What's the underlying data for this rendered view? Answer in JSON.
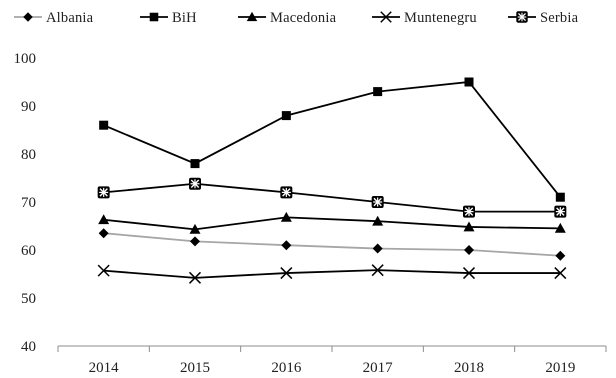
{
  "chart_data": {
    "type": "line",
    "title": "",
    "xlabel": "",
    "ylabel": "",
    "categories": [
      "2014",
      "2015",
      "2016",
      "2017",
      "2018",
      "2019"
    ],
    "ylim": [
      40,
      100
    ],
    "yticks": [
      "40",
      "50",
      "60",
      "70",
      "80",
      "90",
      "100"
    ],
    "grid": false,
    "legend_position": "top",
    "series": [
      {
        "name": "Albania",
        "marker": "diamond",
        "color": "#000000",
        "line_color": "#a6a6a6",
        "values": [
          63.5,
          61.8,
          61.0,
          60.3,
          60.0,
          58.8
        ]
      },
      {
        "name": "BiH",
        "marker": "square",
        "color": "#000000",
        "line_color": "#000000",
        "values": [
          86,
          78,
          88,
          93,
          95,
          71
        ]
      },
      {
        "name": "Macedonia",
        "marker": "triangle",
        "color": "#000000",
        "line_color": "#000000",
        "values": [
          66.3,
          64.3,
          66.8,
          66.0,
          64.8,
          64.5
        ]
      },
      {
        "name": "Muntenegru",
        "marker": "x",
        "color": "#000000",
        "line_color": "#000000",
        "values": [
          55.7,
          54.2,
          55.2,
          55.8,
          55.2,
          55.2
        ]
      },
      {
        "name": "Serbia",
        "marker": "star-circle",
        "color": "#000000",
        "line_color": "#000000",
        "values": [
          72,
          73.8,
          72,
          70,
          68,
          68
        ]
      }
    ]
  }
}
